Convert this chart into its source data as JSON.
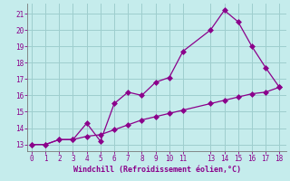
{
  "xlabel": "Windchill (Refroidissement éolien,°C)",
  "bg_color": "#c5ecec",
  "line_color": "#8b008b",
  "grid_color": "#9ecece",
  "line1_x": [
    0,
    1,
    2,
    3,
    4,
    5,
    6,
    7,
    8,
    9,
    10,
    11,
    13,
    14,
    15,
    16,
    17,
    18
  ],
  "line1_y": [
    13.0,
    13.0,
    13.3,
    13.3,
    14.3,
    13.2,
    15.5,
    16.2,
    16.0,
    16.8,
    17.1,
    18.7,
    20.0,
    21.2,
    20.5,
    19.0,
    17.7,
    16.5
  ],
  "line2_x": [
    0,
    1,
    2,
    3,
    4,
    5,
    6,
    7,
    8,
    9,
    10,
    11,
    13,
    14,
    15,
    16,
    17,
    18
  ],
  "line2_y": [
    13.0,
    13.0,
    13.3,
    13.3,
    13.5,
    13.6,
    13.9,
    14.2,
    14.5,
    14.7,
    14.9,
    15.1,
    15.5,
    15.7,
    15.9,
    16.1,
    16.2,
    16.5
  ],
  "xlim": [
    -0.3,
    18.5
  ],
  "ylim": [
    12.6,
    21.6
  ],
  "xticks": [
    0,
    1,
    2,
    3,
    4,
    5,
    6,
    7,
    8,
    9,
    10,
    11,
    13,
    14,
    15,
    16,
    17,
    18
  ],
  "yticks": [
    13,
    14,
    15,
    16,
    17,
    18,
    19,
    20,
    21
  ],
  "markersize": 3.0,
  "linewidth": 0.9
}
